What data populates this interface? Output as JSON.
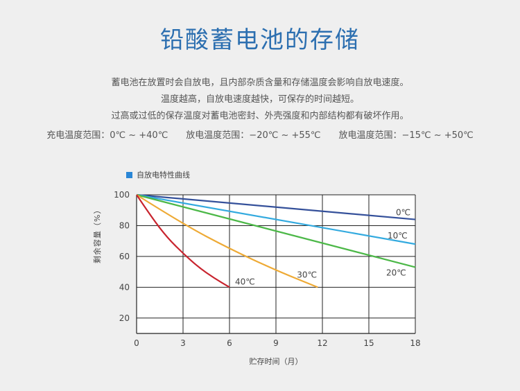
{
  "header": {
    "title": "铅酸蓄电池的存储"
  },
  "description": {
    "line1": "蓄电池在放置时会自放电，且内部杂质含量和存储温度会影响自放电速度。",
    "line2": "温度越高，自放电速度越快，可保存的时间越短。",
    "line3": "过高或过低的保存温度对蓄电池密封、外壳强度和内部结构都有破坏作用。"
  },
  "ranges": {
    "charge": "充电温度范围：0℃ ~ +40℃",
    "discharge": "放电温度范围：−20℃ ~ +55℃",
    "storage": "放电温度范围：−15℃ ~ +50℃"
  },
  "colors": {
    "title": "#2c6fb0",
    "legend": "#2a86d6"
  },
  "chart_data": {
    "type": "line",
    "legend": "自放电特性曲线",
    "xlabel": "贮存时间（月）",
    "ylabel": "剩余容量（%）",
    "xlim": [
      0,
      18
    ],
    "ylim": [
      10,
      100
    ],
    "xticks": [
      0,
      3,
      6,
      9,
      12,
      15,
      18
    ],
    "yticks": [
      20,
      40,
      60,
      80,
      100
    ],
    "grid": true,
    "series": [
      {
        "name": "0℃",
        "color": "#34509a",
        "x": [
          0,
          18
        ],
        "y": [
          100,
          84
        ]
      },
      {
        "name": "10℃",
        "color": "#33aadf",
        "x": [
          0,
          18
        ],
        "y": [
          100,
          68
        ]
      },
      {
        "name": "20℃",
        "color": "#4cb848",
        "x": [
          0,
          18
        ],
        "y": [
          100,
          53
        ]
      },
      {
        "name": "30℃",
        "color": "#eeaa35",
        "x": [
          0,
          3,
          6,
          9,
          11.7
        ],
        "y": [
          100,
          81,
          65,
          51,
          40
        ]
      },
      {
        "name": "40℃",
        "color": "#c8242e",
        "x": [
          0,
          1,
          2,
          3,
          4,
          5,
          6
        ],
        "y": [
          100,
          85,
          72,
          62,
          53,
          46,
          40
        ]
      }
    ]
  }
}
